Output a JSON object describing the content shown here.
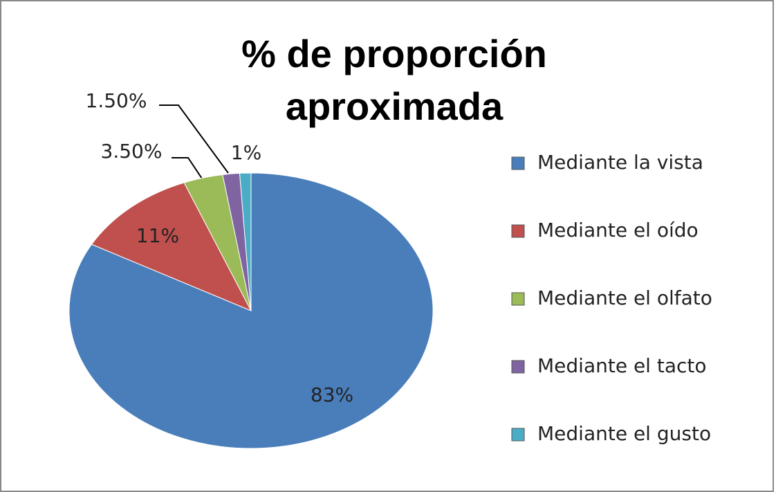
{
  "chart_data": {
    "type": "pie",
    "title": "% de proporción aproximada",
    "categories": [
      "Mediante la vista",
      "Mediante el oído",
      "Mediante el olfato",
      "Mediante el tacto",
      "Mediante el gusto"
    ],
    "values": [
      83,
      11,
      3.5,
      1.5,
      1
    ],
    "value_labels": [
      "83%",
      "11%",
      "3.50%",
      "1.50%",
      "1%"
    ],
    "colors": [
      "#4a7ebb",
      "#c0504d",
      "#9bbb59",
      "#8064a2",
      "#4bacc6"
    ],
    "legend": "right"
  }
}
